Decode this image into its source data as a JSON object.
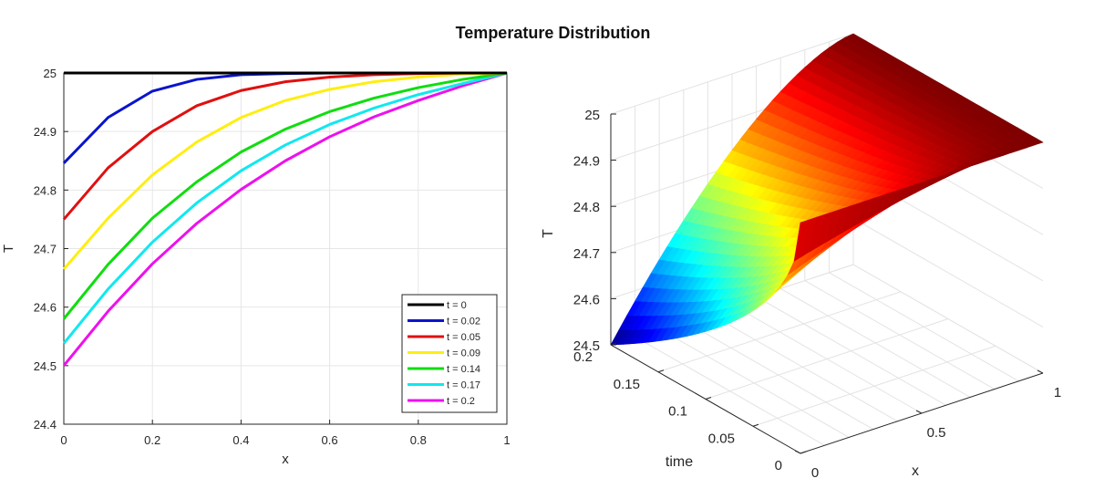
{
  "figure_title": "Temperature Distribution",
  "colors": {
    "t = 0": "#000000",
    "t = 0.02": "#0a14cc",
    "t = 0.05": "#e01010",
    "t = 0.09": "#ffee10",
    "t = 0.14": "#10dd10",
    "t = 0.17": "#10e8ee",
    "t = 0.2": "#ee10ee",
    "grid": "#e6e6e6",
    "axis": "#262626"
  },
  "chart_data": [
    {
      "type": "line",
      "title": "",
      "xlabel": "x",
      "ylabel": "T",
      "xlim": [
        0,
        1
      ],
      "ylim": [
        24.4,
        25
      ],
      "xticks": [
        0,
        0.2,
        0.4,
        0.6,
        0.8,
        1
      ],
      "xtick_labels": [
        "0",
        "0.2",
        "0.4",
        "0.6",
        "0.8",
        "1"
      ],
      "yticks": [
        24.4,
        24.5,
        24.6,
        24.7,
        24.8,
        24.9,
        25
      ],
      "ytick_labels": [
        "24.4",
        "24.5",
        "24.6",
        "24.7",
        "24.8",
        "24.9",
        "25"
      ],
      "grid": true,
      "legend_position": "bottom-right",
      "x": [
        0,
        0.1,
        0.2,
        0.3,
        0.4,
        0.5,
        0.6,
        0.7,
        0.8,
        0.9,
        1.0
      ],
      "series": [
        {
          "name": "t = 0",
          "values": [
            25,
            25,
            25,
            25,
            25,
            25,
            25,
            25,
            25,
            25,
            25
          ]
        },
        {
          "name": "t = 0.02",
          "values": [
            24.846,
            24.924,
            24.969,
            24.989,
            24.997,
            24.999,
            25,
            25,
            25,
            25,
            25
          ]
        },
        {
          "name": "t = 0.05",
          "values": [
            24.75,
            24.838,
            24.9,
            24.944,
            24.97,
            24.985,
            24.993,
            24.997,
            24.999,
            25,
            25
          ]
        },
        {
          "name": "t = 0.09",
          "values": [
            24.665,
            24.752,
            24.826,
            24.882,
            24.924,
            24.953,
            24.972,
            24.985,
            24.993,
            24.998,
            25
          ]
        },
        {
          "name": "t = 0.14",
          "values": [
            24.58,
            24.673,
            24.752,
            24.814,
            24.865,
            24.904,
            24.934,
            24.957,
            24.975,
            24.989,
            25
          ]
        },
        {
          "name": "t = 0.17",
          "values": [
            24.538,
            24.631,
            24.711,
            24.778,
            24.833,
            24.877,
            24.912,
            24.94,
            24.963,
            24.982,
            25
          ]
        },
        {
          "name": "t = 0.2",
          "values": [
            24.5,
            24.593,
            24.674,
            24.743,
            24.801,
            24.85,
            24.891,
            24.925,
            24.953,
            24.978,
            25
          ]
        }
      ]
    },
    {
      "type": "surface",
      "title": "",
      "xlabel": "x",
      "ylabel": "time",
      "zlabel": "T",
      "xlim": [
        0,
        1
      ],
      "ylim": [
        0,
        0.2
      ],
      "zlim": [
        24.5,
        25
      ],
      "xticks": [
        0,
        0.5,
        1
      ],
      "xtick_labels": [
        "0",
        "0.5",
        "1"
      ],
      "yticks": [
        0,
        0.05,
        0.1,
        0.15,
        0.2
      ],
      "ytick_labels": [
        "0",
        "0.05",
        "0.1",
        "0.15",
        "0.2"
      ],
      "zticks": [
        24.5,
        24.6,
        24.7,
        24.8,
        24.9,
        25
      ],
      "ztick_labels": [
        "24.5",
        "24.6",
        "24.7",
        "24.8",
        "24.9",
        "25"
      ],
      "grid": true,
      "colormap": "jet",
      "description_of_data": "T(x, time) surface: T = 25 at time 0 and at x = 1; minimum 24.5 at x = 0, time = 0.2"
    }
  ]
}
